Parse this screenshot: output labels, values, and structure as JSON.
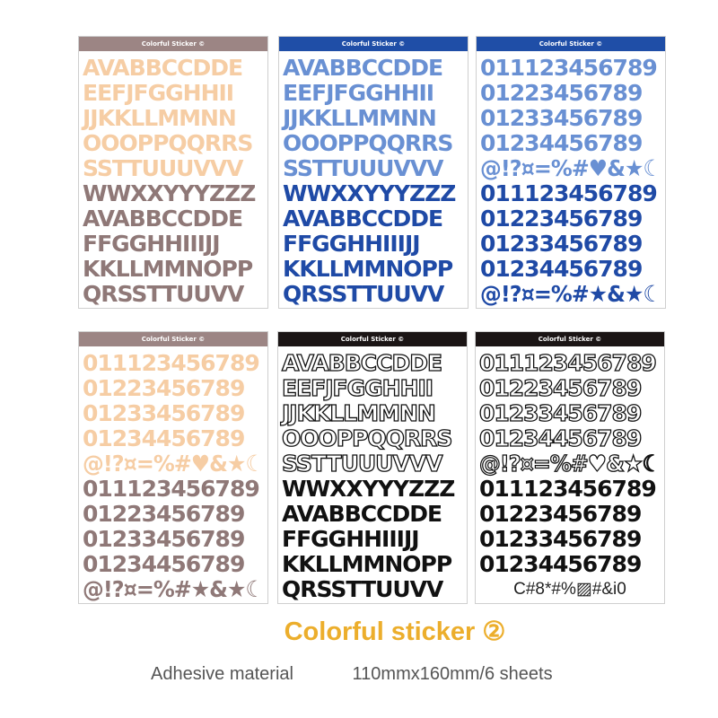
{
  "title": "Colorful sticker ②",
  "specs": {
    "material": "Adhesive material",
    "size": "110mmx160mm/6 sheets"
  },
  "letter_rows": [
    "AVABBCCDDE",
    "EEFJFGGHHII",
    "JJKKLLMMNN",
    "OOOPPQQRRS",
    "SSTTUUUVVV",
    "WWXXYYYZZZ",
    "AVABBCCDDE",
    "FFGGHHIIIJJ",
    "KKLLMMNOPP",
    "QRSSTTUUVV"
  ],
  "number_rows": [
    "011123456789",
    "01223456789",
    "01233456789",
    "01234456789",
    "@!?¤=%#♥&★☾",
    "011123456789",
    "01223456789",
    "01233456789",
    "01234456789",
    "@!?¤=%#★&★☾"
  ],
  "sheets": [
    {
      "header": "Colorful Sticker ©",
      "kind": "letters",
      "header_color": "#9c8584",
      "top_color": "#f6cda4",
      "bottom_color": "#8f7877"
    },
    {
      "header": "Colorful Sticker ©",
      "kind": "letters",
      "header_color": "#1f4ea7",
      "top_color": "#6990d3",
      "bottom_color": "#1f4aa6"
    },
    {
      "header": "Colorful Sticker ©",
      "kind": "numbers",
      "header_color": "#1f4ea7",
      "top_color": "#6990d3",
      "bottom_color": "#1f4aa6"
    },
    {
      "header": "Colorful Sticker ©",
      "kind": "numbers",
      "header_color": "#9c8584",
      "top_color": "#f6cda4",
      "bottom_color": "#8f7877"
    },
    {
      "header": "Colorful Sticker ©",
      "kind": "letters",
      "header_color": "#1b1515",
      "top_color": "outline",
      "bottom_color": "#111111"
    },
    {
      "header": "Colorful Sticker ©",
      "kind": "numbers",
      "header_color": "#1b1515",
      "top_color": "outline",
      "bottom_color": "#111111",
      "last_row": "C#8*#%▨#&i0"
    }
  ]
}
